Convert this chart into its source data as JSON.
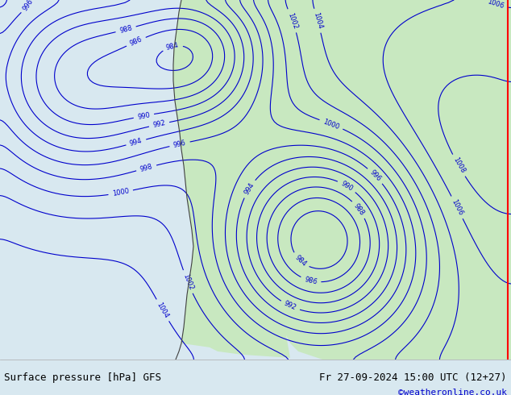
{
  "title_left": "Surface pressure [hPa] GFS",
  "title_right": "Fr 27-09-2024 15:00 UTC (12+27)",
  "credit": "©weatheronline.co.uk",
  "background_color": "#d8e8f0",
  "land_color": "#c8e8c0",
  "border_color": "#404040",
  "contour_color_blue": "#0000cc",
  "contour_color_black": "#000000",
  "contour_color_red": "#cc0000",
  "label_color_blue": "#0000cc",
  "bottom_bar_color": "#e8e8e8",
  "bottom_text_color": "#000000",
  "credit_color": "#0000cc",
  "figwidth": 6.34,
  "figheight": 4.9,
  "dpi": 100
}
